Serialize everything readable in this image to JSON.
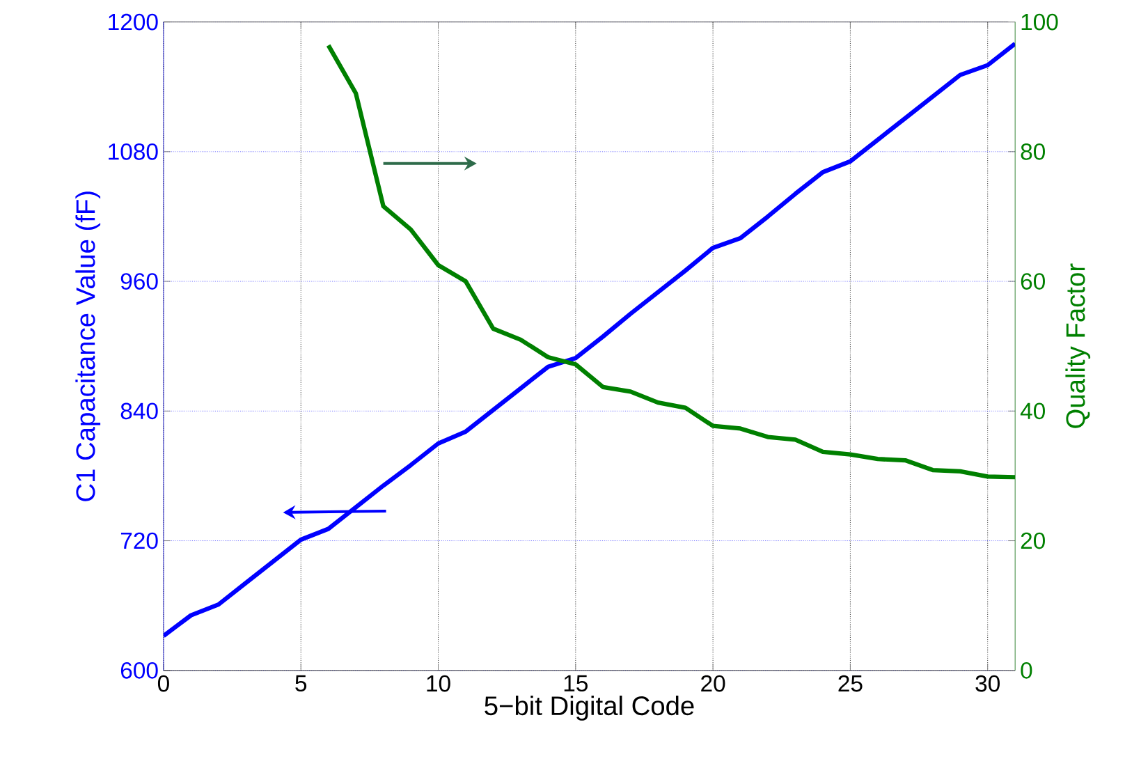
{
  "chart_data": {
    "type": "line",
    "xlabel": "5−bit Digital Code",
    "ylabel": "C1 Capacitance Value (fF)",
    "y2label": "Quality Factor",
    "grid": true,
    "xlim": [
      0,
      31
    ],
    "xticks": [
      0,
      5,
      10,
      15,
      20,
      25,
      30
    ],
    "ylim": [
      600,
      1200
    ],
    "yticks": [
      600,
      720,
      840,
      960,
      1080,
      1200
    ],
    "y2lim": [
      0,
      100
    ],
    "y2ticks": [
      0,
      20,
      40,
      60,
      80,
      100
    ],
    "series": [
      {
        "color": "#0000ff",
        "axis": "y",
        "x": [
          0,
          1,
          2,
          3,
          4,
          5,
          6,
          7,
          8,
          9,
          10,
          11,
          12,
          13,
          14,
          15,
          16,
          17,
          18,
          19,
          20,
          21,
          22,
          23,
          24,
          25,
          26,
          27,
          28,
          29,
          30,
          31
        ],
        "values": [
          632,
          651,
          661,
          681,
          701,
          721,
          731,
          751,
          771,
          790,
          810,
          821,
          841,
          861,
          881,
          889,
          909,
          930,
          950,
          970,
          991,
          1000,
          1020,
          1041,
          1061,
          1071,
          1091,
          1111,
          1131,
          1151,
          1160,
          1180
        ]
      },
      {
        "color": "#008000",
        "axis": "y2",
        "x": [
          6,
          7,
          8,
          9,
          10,
          11,
          12,
          13,
          14,
          15,
          16,
          17,
          18,
          19,
          20,
          21,
          22,
          23,
          24,
          25,
          26,
          27,
          28,
          29,
          30,
          31
        ],
        "values": [
          96.4,
          89,
          71.6,
          68,
          62.5,
          60,
          52.7,
          51,
          48.3,
          47.2,
          43.7,
          43,
          41.3,
          40.5,
          37.7,
          37.3,
          36,
          35.6,
          33.7,
          33.3,
          32.6,
          32.4,
          30.9,
          30.7,
          29.9,
          29.8
        ]
      }
    ]
  }
}
